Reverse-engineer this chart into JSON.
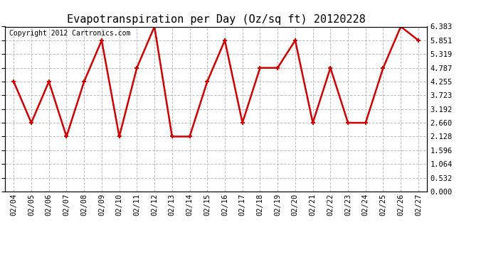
{
  "title": "Evapotranspiration per Day (Oz/sq ft) 20120228",
  "copyright": "Copyright 2012 Cartronics.com",
  "x_labels": [
    "02/04",
    "02/05",
    "02/06",
    "02/07",
    "02/08",
    "02/09",
    "02/10",
    "02/11",
    "02/12",
    "02/13",
    "02/14",
    "02/15",
    "02/16",
    "02/17",
    "02/18",
    "02/19",
    "02/20",
    "02/21",
    "02/22",
    "02/23",
    "02/24",
    "02/25",
    "02/26",
    "02/27"
  ],
  "y_values": [
    4.255,
    2.66,
    4.255,
    2.128,
    4.255,
    5.851,
    2.128,
    4.787,
    6.383,
    2.128,
    2.128,
    4.255,
    5.851,
    2.66,
    4.787,
    4.787,
    5.851,
    2.66,
    4.787,
    2.66,
    2.66,
    4.787,
    6.383,
    5.851
  ],
  "y_ticks": [
    0.0,
    0.532,
    1.064,
    1.596,
    2.128,
    2.66,
    3.192,
    3.723,
    4.255,
    4.787,
    5.319,
    5.851,
    6.383
  ],
  "ylim": [
    0.0,
    6.383
  ],
  "line_color": "#cc0000",
  "marker": "+",
  "marker_size": 5,
  "line_width": 1.8,
  "bg_color": "#ffffff",
  "grid_color": "#bbbbbb",
  "grid_style": "--",
  "title_fontsize": 11,
  "copyright_fontsize": 7,
  "tick_fontsize": 7.5
}
